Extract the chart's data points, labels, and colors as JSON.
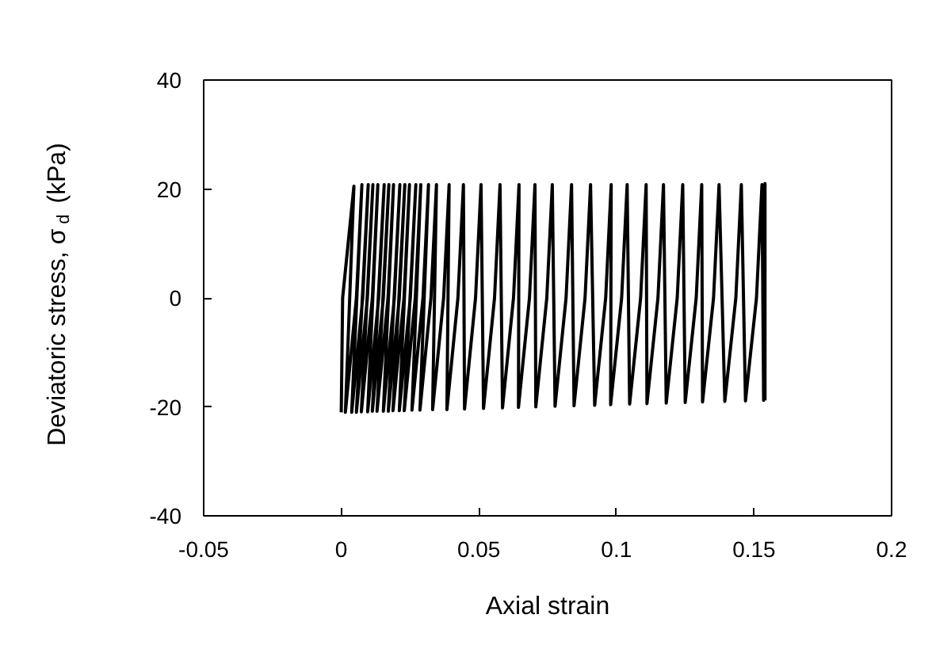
{
  "chart_data": {
    "type": "line",
    "xlabel": "Axial strain",
    "ylabel": "Deviatoric stress, σ$_{d}$ (kPa)",
    "xlim": [
      -0.05,
      0.2
    ],
    "xticks": [
      -0.05,
      0,
      0.05,
      0.1,
      0.15,
      0.2
    ],
    "ylim": [
      -40,
      40
    ],
    "yticks": [
      -40,
      -20,
      0,
      20,
      40
    ],
    "grid": false,
    "marker": "none",
    "line_style": "solid",
    "series": [
      {
        "color": "#000000",
        "x": [
          0,
          0.0005,
          0.0046,
          0.0015,
          0.0055,
          0.0075,
          0.0038,
          0.0078,
          0.0098,
          0.0055,
          0.0095,
          0.0115,
          0.0073,
          0.0113,
          0.0133,
          0.0096,
          0.0136,
          0.0156,
          0.0113,
          0.0153,
          0.0173,
          0.013,
          0.017,
          0.019,
          0.0153,
          0.0193,
          0.0213,
          0.0171,
          0.0211,
          0.0231,
          0.0188,
          0.0228,
          0.0248,
          0.0211,
          0.0251,
          0.0271,
          0.0229,
          0.0269,
          0.0289,
          0.0257,
          0.0297,
          0.0317,
          0.0286,
          0.0326,
          0.0346,
          0.0332,
          0.0372,
          0.0392,
          0.0384,
          0.0424,
          0.0444,
          0.0448,
          0.0488,
          0.0508,
          0.0517,
          0.0557,
          0.0577,
          0.0586,
          0.0626,
          0.0646,
          0.0644,
          0.0684,
          0.0704,
          0.0707,
          0.0747,
          0.0767,
          0.0777,
          0.0817,
          0.0837,
          0.0846,
          0.0886,
          0.0906,
          0.0921,
          0.0961,
          0.0981,
          0.0979,
          0.1019,
          0.1039,
          0.1048,
          0.1088,
          0.1108,
          0.1111,
          0.1151,
          0.1171,
          0.1181,
          0.1221,
          0.1241,
          0.125,
          0.129,
          0.131,
          0.1313,
          0.1353,
          0.1373,
          0.1394,
          0.1434,
          0.1454,
          0.1469,
          0.1509,
          0.1529,
          0.1535,
          0.154,
          0.154
        ],
        "values": [
          -21,
          0,
          20.5,
          -21,
          0,
          20.8,
          -21,
          0,
          20.8,
          -21,
          0,
          20.8,
          -20.9,
          0,
          20.8,
          -20.9,
          0,
          20.8,
          -20.8,
          0,
          20.8,
          -20.8,
          0,
          20.8,
          -20.8,
          0,
          20.8,
          -20.8,
          0,
          20.8,
          -20.7,
          0,
          20.8,
          -20.7,
          0,
          20.8,
          -20.7,
          0,
          20.8,
          -20.6,
          0,
          20.8,
          -20.6,
          0,
          20.8,
          -20.5,
          0,
          20.8,
          -20.5,
          0,
          20.8,
          -20.4,
          0,
          20.8,
          -20.3,
          0,
          20.8,
          -20.2,
          0,
          20.8,
          -20.1,
          0,
          20.8,
          -20,
          0,
          20.8,
          -19.9,
          0,
          20.8,
          -19.8,
          0,
          20.8,
          -19.7,
          0,
          20.8,
          -19.6,
          0,
          20.8,
          -19.5,
          0,
          20.8,
          -19.4,
          0,
          20.8,
          -19.3,
          0,
          20.8,
          -19.2,
          0,
          20.8,
          -19.1,
          0,
          20.8,
          -19,
          0,
          20.8,
          -18.9,
          0,
          20.8,
          -18.8,
          21,
          -18.8
        ]
      }
    ]
  }
}
